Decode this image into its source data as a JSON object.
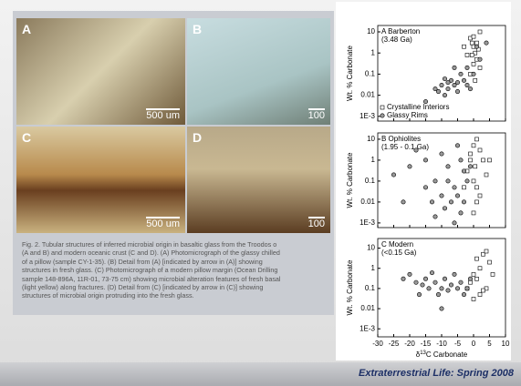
{
  "figure": {
    "panels": [
      {
        "label": "A",
        "scale": "500 um"
      },
      {
        "label": "B",
        "scale": "100"
      },
      {
        "label": "C",
        "scale": "500 um"
      },
      {
        "label": "D",
        "scale": "100"
      }
    ],
    "caption": [
      "Fig. 2. Tubular structures of inferred microbial origin in basaltic glass from the Troodos o",
      "(A and B) and modern oceanic crust (C and D). (A) Photomicrograph of the glassy chilled",
      "of a pillow (sample CY-1-35). (B) Detail from (A) [indicated by arrow in (A)] showing",
      "structures in fresh glass. (C) Photomicrograph of a modern pillow margin (Ocean Drilling",
      "sample 148-896A, 11R-01, 73-75 cm) showing microbial alteration features of fresh basal",
      "(light yellow) along fractures. (D) Detail from (C) [indicated by arrow in (C)] showing",
      "structures of microbial origin protruding into the fresh glass."
    ]
  },
  "chart_data": [
    {
      "type": "scatter",
      "title": "A Barberton",
      "subtitle": "(3.48 Ga)",
      "y_label": "Wt. % Carbonate",
      "log_y": true,
      "xlim": [
        -30,
        10
      ],
      "xticks": [
        -30,
        -25,
        -20,
        -15,
        -10,
        -5,
        0,
        5,
        10
      ],
      "ylim": [
        0.0006,
        20
      ],
      "yticks": [
        10,
        1,
        0.1,
        0.01,
        {
          "value": 0.001,
          "label": "1E-3"
        }
      ],
      "series": [
        {
          "name": "Crystalline Interiors",
          "marker": "square",
          "color": "#ffffff",
          "x": [
            -1,
            -0.5,
            0,
            0.5,
            1,
            -2,
            0,
            1.5,
            2,
            -1,
            0.5,
            -3,
            0,
            1,
            -0.5,
            2
          ],
          "values": [
            5,
            3,
            2,
            1,
            0.5,
            0.8,
            0.3,
            1.5,
            10,
            0.1,
            0.05,
            2,
            6,
            3,
            0.8,
            0.2
          ]
        },
        {
          "name": "Glassy Rims",
          "marker": "circle",
          "color": "#9a9a9a",
          "x": [
            -15,
            -12,
            -10,
            -9,
            -8,
            -7,
            -6,
            -5,
            -4,
            -3,
            -2,
            -1,
            -5,
            -8,
            -11,
            0,
            2,
            4,
            1,
            -2,
            -6,
            -9
          ],
          "values": [
            0.005,
            0.02,
            0.03,
            0.01,
            0.02,
            0.05,
            0.03,
            0.04,
            0.1,
            0.05,
            0.03,
            0.02,
            0.015,
            0.04,
            0.015,
            0.1,
            0.5,
            3,
            2,
            0.2,
            0.2,
            0.06
          ]
        }
      ]
    },
    {
      "type": "scatter",
      "title": "B Ophiolites",
      "subtitle": "(1.95 - 0.1 Ga)",
      "y_label": "Wt. % Carbonate",
      "log_y": true,
      "xlim": [
        -30,
        10
      ],
      "xticks": [
        -30,
        -25,
        -20,
        -15,
        -10,
        -5,
        0,
        5,
        10
      ],
      "ylim": [
        0.0006,
        20
      ],
      "yticks": [
        10,
        1,
        0.1,
        0.01,
        {
          "value": 0.001,
          "label": "1E-3"
        }
      ],
      "series": [
        {
          "marker": "square",
          "color": "#ffffff",
          "x": [
            0,
            1,
            2,
            -1,
            0.5,
            3,
            -2,
            0,
            1,
            2,
            -3,
            4,
            -1,
            1,
            0,
            5
          ],
          "values": [
            5,
            10,
            3,
            1,
            0.5,
            1,
            0.3,
            0.1,
            0.05,
            0.02,
            0.05,
            0.2,
            2,
            0.01,
            0.003,
            1
          ]
        },
        {
          "marker": "circle",
          "color": "#9a9a9a",
          "x": [
            -25,
            -22,
            -20,
            -18,
            -15,
            -13,
            -12,
            -10,
            -9,
            -8,
            -7,
            -6,
            -5,
            -4,
            -3,
            -2,
            -10,
            -5,
            -8,
            -12,
            -6,
            -3,
            -15,
            -1,
            -4
          ],
          "values": [
            0.2,
            0.01,
            0.5,
            3,
            0.05,
            0.01,
            0.1,
            0.02,
            0.005,
            0.1,
            0.01,
            0.05,
            0.02,
            0.003,
            0.01,
            0.1,
            2,
            5,
            0.5,
            0.002,
            0.001,
            0.3,
            1,
            0.5,
            1
          ]
        }
      ]
    },
    {
      "type": "scatter",
      "title": "C Modern",
      "subtitle": "(<0.15 Ga)",
      "y_label": "Wt. % Carbonate",
      "x_label": [
        "δ",
        "13",
        "C Carbonate"
      ],
      "log_y": true,
      "xlim": [
        -30,
        10
      ],
      "xticks": [
        -30,
        -25,
        -20,
        -15,
        -10,
        -5,
        0,
        5,
        10
      ],
      "ylim": [
        0.0004,
        30
      ],
      "yticks": [
        10,
        1,
        0.1,
        0.01,
        {
          "value": 0.001,
          "label": "1E-3"
        }
      ],
      "series": [
        {
          "marker": "square",
          "color": "#ffffff",
          "x": [
            3,
            5,
            2,
            0,
            1,
            4,
            -1,
            2,
            0,
            3,
            6,
            1,
            -2,
            4
          ],
          "values": [
            5,
            2,
            1,
            0.5,
            0.3,
            0.1,
            0.2,
            0.05,
            0.03,
            0.08,
            0.5,
            3,
            0.1,
            7
          ]
        },
        {
          "marker": "circle",
          "color": "#9a9a9a",
          "x": [
            -22,
            -20,
            -18,
            -17,
            -15,
            -14,
            -12,
            -11,
            -10,
            -9,
            -8,
            -7,
            -6,
            -5,
            -4,
            -3,
            -2,
            -10,
            -13,
            -16,
            -1
          ],
          "values": [
            0.3,
            0.5,
            0.2,
            0.05,
            0.3,
            0.1,
            0.2,
            0.05,
            0.1,
            0.3,
            0.08,
            0.15,
            0.5,
            0.1,
            0.2,
            0.05,
            0.1,
            0.01,
            0.6,
            0.15,
            0.3
          ]
        }
      ]
    }
  ],
  "footer": "Extraterrestrial Life: Spring 2008"
}
